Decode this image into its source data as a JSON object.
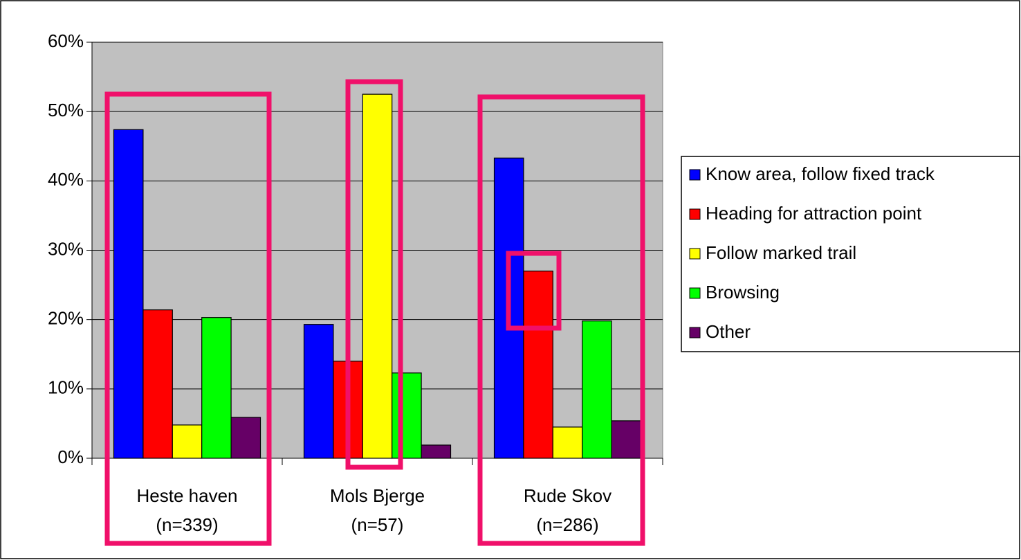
{
  "chart_data": {
    "type": "bar",
    "categories": [
      [
        "Heste haven",
        "(n=339)"
      ],
      [
        "Mols Bjerge",
        "(n=57)"
      ],
      [
        "Rude Skov",
        "(n=286)"
      ]
    ],
    "series": [
      {
        "name": "Know area, follow fixed track",
        "color": "#0000ff",
        "values": [
          47.4,
          19.3,
          43.3
        ]
      },
      {
        "name": "Heading for attraction point",
        "color": "#ff0000",
        "values": [
          21.4,
          14.0,
          27.0
        ]
      },
      {
        "name": "Follow marked trail",
        "color": "#ffff00",
        "values": [
          4.8,
          52.5,
          4.5
        ]
      },
      {
        "name": "Browsing",
        "color": "#00ff00",
        "values": [
          20.3,
          12.3,
          19.8
        ]
      },
      {
        "name": "Other",
        "color": "#660066",
        "values": [
          5.9,
          1.9,
          5.4
        ]
      }
    ],
    "ylim": [
      0,
      60
    ],
    "yticks": [
      {
        "value": 0,
        "label": "0%"
      },
      {
        "value": 10,
        "label": "10%"
      },
      {
        "value": 20,
        "label": "20%"
      },
      {
        "value": 30,
        "label": "30%"
      },
      {
        "value": 40,
        "label": "40%"
      },
      {
        "value": 50,
        "label": "50%"
      },
      {
        "value": 60,
        "label": "60%"
      }
    ],
    "grid": true,
    "plot_background": "#c0c0c0",
    "legend": "right"
  }
}
